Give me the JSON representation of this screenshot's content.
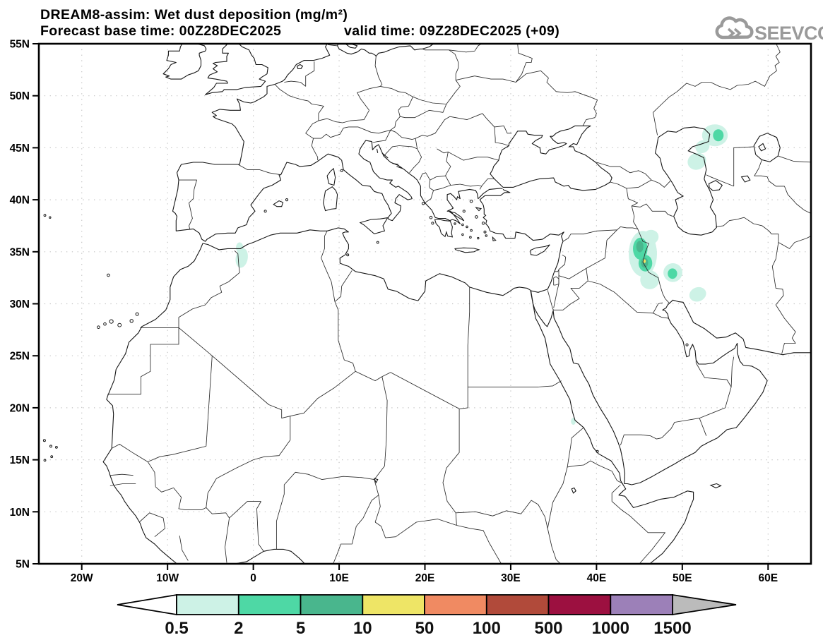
{
  "header": {
    "title_line1": "DREAM8-assim: Wet dust deposition (mg/m²)",
    "forecast_base": "Forecast base time: 00Z28DEC2025",
    "valid_time": "valid time: 09Z28DEC2025 (+09)"
  },
  "logo": {
    "text": "SEEVCCC"
  },
  "map": {
    "extent": {
      "lon_min": -25,
      "lon_max": 65,
      "lat_min": 5,
      "lat_max": 55
    },
    "x_ticks": [
      {
        "lon": -20,
        "label": "20W"
      },
      {
        "lon": -10,
        "label": "10W"
      },
      {
        "lon": 0,
        "label": "0"
      },
      {
        "lon": 10,
        "label": "10E"
      },
      {
        "lon": 20,
        "label": "20E"
      },
      {
        "lon": 30,
        "label": "30E"
      },
      {
        "lon": 40,
        "label": "40E"
      },
      {
        "lon": 50,
        "label": "50E"
      },
      {
        "lon": 60,
        "label": "60E"
      }
    ],
    "y_ticks": [
      {
        "lat": 5,
        "label": "5N"
      },
      {
        "lat": 10,
        "label": "10N"
      },
      {
        "lat": 15,
        "label": "15N"
      },
      {
        "lat": 20,
        "label": "20N"
      },
      {
        "lat": 25,
        "label": "25N"
      },
      {
        "lat": 30,
        "label": "30N"
      },
      {
        "lat": 35,
        "label": "35N"
      },
      {
        "lat": 40,
        "label": "40N"
      },
      {
        "lat": 45,
        "label": "45N"
      },
      {
        "lat": 50,
        "label": "50N"
      },
      {
        "lat": 55,
        "label": "55N"
      }
    ],
    "grid": {
      "lon_step": 10,
      "lat_step": 5,
      "style": "dotted"
    }
  },
  "colorbar": {
    "boundary_labels": [
      "0.5",
      "2",
      "5",
      "10",
      "50",
      "100",
      "500",
      "1000",
      "1500"
    ],
    "segment_ranges": [
      "0.5-2",
      "2-5",
      "5-10",
      "10-50",
      "50-100",
      "100-500",
      "500-1000",
      "1000-1500"
    ],
    "segment_colors": [
      "#cdf2e6",
      "#4ed8a5",
      "#49b68d",
      "#eee566",
      "#f08a62",
      "#b14a3a",
      "#9c1040",
      "#9c80b8"
    ],
    "underflow_color": "#ffffff",
    "overflow_color": "#bbbbbb",
    "units": "mg/m²"
  },
  "chart_data": {
    "type": "filled-contour-map",
    "variable": "Wet dust deposition",
    "units": "mg/m²",
    "model": "DREAM8-assim",
    "levels": [
      0.5,
      2,
      5,
      10,
      50,
      100,
      500,
      1000,
      1500
    ],
    "deposition_patches": [
      {
        "area": "NW Algeria / Morocco border",
        "level": "0.5-2",
        "level_index": 0,
        "shapes": [
          {
            "lon": -1.6,
            "lat": 35.4,
            "rx": 0.42,
            "ry": 0.5,
            "rot": 0
          },
          {
            "lon": -1.35,
            "lat": 34.4,
            "rx": 0.7,
            "ry": 0.95,
            "rot": 10
          }
        ]
      },
      {
        "area": "North Caspian lowland",
        "level": "0.5-2",
        "level_index": 0,
        "shapes": [
          {
            "lon": 53.8,
            "lat": 46.2,
            "rx": 1.5,
            "ry": 1.05,
            "rot": 0
          },
          {
            "lon": 52.35,
            "lat": 45.1,
            "rx": 0.85,
            "ry": 0.6,
            "rot": -30
          },
          {
            "lon": 51.7,
            "lat": 43.7,
            "rx": 1.1,
            "ry": 0.8,
            "rot": -25
          }
        ]
      },
      {
        "area": "North Caspian core",
        "level": "2-5",
        "level_index": 1,
        "shapes": [
          {
            "lon": 54.2,
            "lat": 46.2,
            "rx": 0.62,
            "ry": 0.58,
            "rot": 0
          }
        ]
      },
      {
        "area": "Iraq / western Iran halo",
        "level": "0.5-2",
        "level_index": 0,
        "shapes": [
          {
            "lon": 45.4,
            "lat": 34.8,
            "rx": 1.65,
            "ry": 2.2,
            "rot": 0
          },
          {
            "lon": 46.3,
            "lat": 36.4,
            "rx": 0.95,
            "ry": 0.7,
            "rot": -20
          },
          {
            "lon": 46.2,
            "lat": 32.3,
            "rx": 1.1,
            "ry": 0.9,
            "rot": 0
          },
          {
            "lon": 48.9,
            "lat": 33.0,
            "rx": 1.1,
            "ry": 0.9,
            "rot": -15
          },
          {
            "lon": 51.8,
            "lat": 30.9,
            "rx": 1.0,
            "ry": 0.68,
            "rot": -20
          }
        ]
      },
      {
        "area": "Iraq / western Iran",
        "level": "2-5",
        "level_index": 1,
        "shapes": [
          {
            "lon": 45.1,
            "lat": 35.3,
            "rx": 0.85,
            "ry": 1.05,
            "rot": 0
          },
          {
            "lon": 45.7,
            "lat": 33.9,
            "rx": 0.8,
            "ry": 0.8,
            "rot": 0
          },
          {
            "lon": 48.85,
            "lat": 32.9,
            "rx": 0.55,
            "ry": 0.5,
            "rot": 0
          }
        ]
      },
      {
        "area": "Iraq border core",
        "level": "5-10",
        "level_index": 2,
        "shapes": [
          {
            "lon": 45.05,
            "lat": 35.5,
            "rx": 0.42,
            "ry": 0.55,
            "rot": 0
          },
          {
            "lon": 45.6,
            "lat": 33.95,
            "rx": 0.42,
            "ry": 0.48,
            "rot": 0
          }
        ]
      },
      {
        "area": "Iraq peak",
        "level": "10-50",
        "level_index": 3,
        "shapes": [
          {
            "lon": 45.6,
            "lat": 34.1,
            "rx": 0.15,
            "ry": 0.18,
            "rot": 0
          }
        ]
      },
      {
        "area": "Sudan Red Sea coast",
        "level": "0.5-2",
        "level_index": 0,
        "shapes": [
          {
            "lon": 37.3,
            "lat": 18.7,
            "rx": 0.28,
            "ry": 0.34,
            "rot": 0
          }
        ]
      }
    ]
  }
}
